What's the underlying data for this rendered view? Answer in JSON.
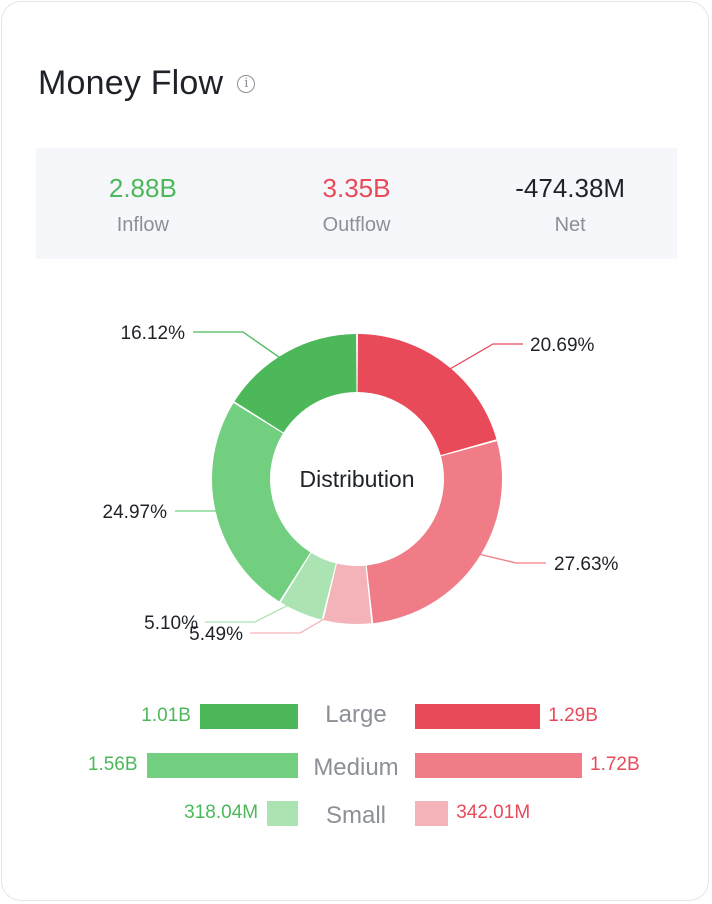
{
  "header": {
    "title": "Money Flow",
    "info_icon": "info-icon"
  },
  "summary": [
    {
      "value": "2.88B",
      "label": "Inflow",
      "color": "#4cb85a"
    },
    {
      "value": "3.35B",
      "label": "Outflow",
      "color": "#e84a5a"
    },
    {
      "value": "-474.38M",
      "label": "Net",
      "color": "#1f2329"
    }
  ],
  "chart_data": {
    "type": "pie",
    "title": "Distribution",
    "slices": [
      {
        "category": "Large",
        "flow": "Outflow",
        "value": 20.69,
        "label": "20.69%",
        "color": "#e84a5a"
      },
      {
        "category": "Medium",
        "flow": "Outflow",
        "value": 27.63,
        "label": "27.63%",
        "color": "#f07c88"
      },
      {
        "category": "Small",
        "flow": "Outflow",
        "value": 5.49,
        "label": "5.49%",
        "color": "#f4b3b9"
      },
      {
        "category": "Small",
        "flow": "Inflow",
        "value": 5.1,
        "label": "5.10%",
        "color": "#abe3b3"
      },
      {
        "category": "Medium",
        "flow": "Inflow",
        "value": 24.97,
        "label": "24.97%",
        "color": "#72cf80"
      },
      {
        "category": "Large",
        "flow": "Inflow",
        "value": 16.12,
        "label": "16.12%",
        "color": "#4cb85a"
      }
    ],
    "bars": {
      "categories": [
        "Large",
        "Medium",
        "Small"
      ],
      "inflow": [
        {
          "value": 1.01,
          "label": "1.01B"
        },
        {
          "value": 1.56,
          "label": "1.56B"
        },
        {
          "value": 0.31804,
          "label": "318.04M"
        }
      ],
      "outflow": [
        {
          "value": 1.29,
          "label": "1.29B"
        },
        {
          "value": 1.72,
          "label": "1.72B"
        },
        {
          "value": 0.34201,
          "label": "342.01M"
        }
      ],
      "colors": {
        "inflow": [
          "#4cb85a",
          "#72cf80",
          "#abe3b3"
        ],
        "outflow": [
          "#e84a5a",
          "#f07c88",
          "#f4b3b9"
        ]
      }
    }
  }
}
